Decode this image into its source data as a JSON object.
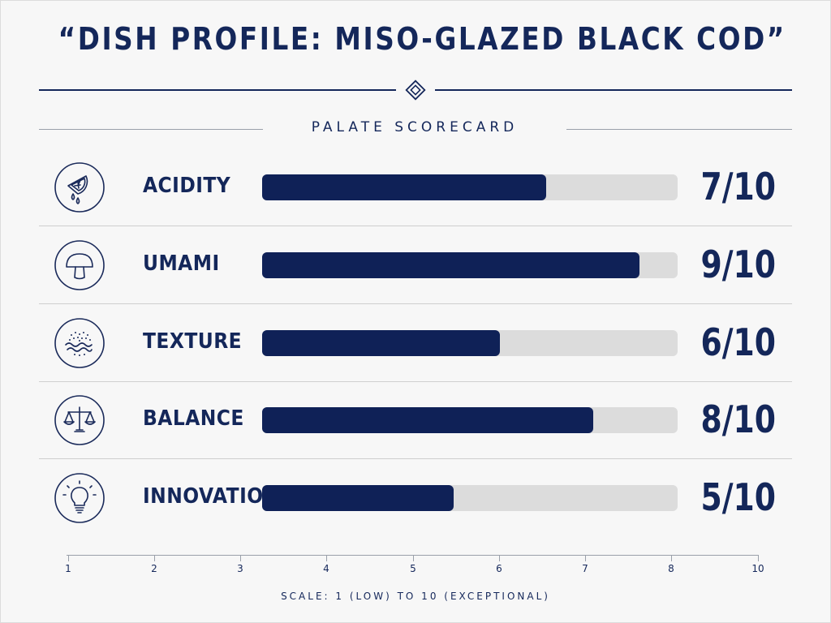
{
  "header": {
    "title": "“DISH PROFILE: MISO-GLAZED BLACK COD”",
    "subtitle": "PALATE SCORECARD"
  },
  "footnote": "SCALE: 1 (LOW) TO 10 (EXCEPTIONAL)",
  "colors": {
    "bar_fill": "#0f2157",
    "bar_track": "#dcdcdc",
    "ink": "#14275a"
  },
  "chart_data": {
    "type": "bar",
    "orientation": "horizontal",
    "categories": [
      "ACIDITY",
      "UMAMI",
      "TEXTURE",
      "BALANCE",
      "INNOVATION"
    ],
    "values": [
      7,
      9,
      6,
      8,
      5
    ],
    "max": 10,
    "value_labels": [
      "7/10",
      "9/10",
      "6/10",
      "8/10",
      "5/10"
    ],
    "icons": [
      "lemon-drops-icon",
      "mushroom-icon",
      "texture-waves-icon",
      "scales-icon",
      "lightbulb-icon"
    ],
    "axis_ticks": [
      "1",
      "2",
      "3",
      "4",
      "5",
      "6",
      "7",
      "8",
      "10"
    ],
    "grid": false,
    "legend": "none"
  }
}
